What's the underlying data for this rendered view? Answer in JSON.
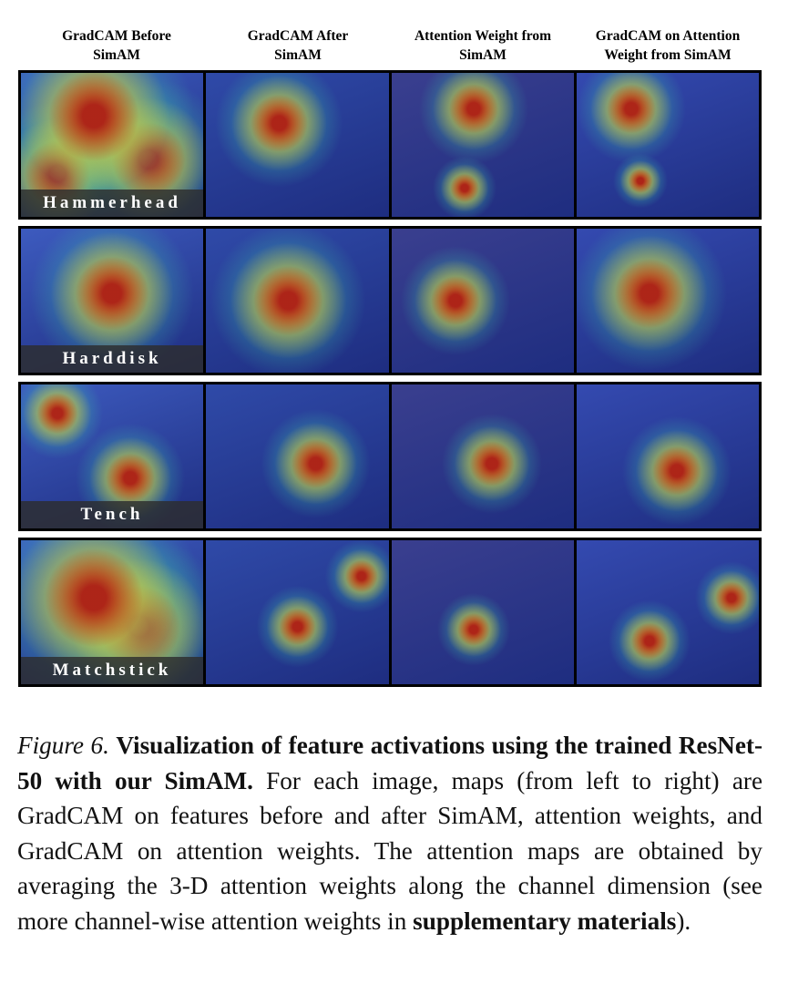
{
  "columns": [
    "GradCAM Before\nSimAM",
    "GradCAM After\nSimAM",
    "Attention Weight from\nSimAM",
    "GradCAM on Attention\nWeight from SimAM"
  ],
  "rows": [
    {
      "label": "Hammerhead"
    },
    {
      "label": "Harddisk"
    },
    {
      "label": "Tench"
    },
    {
      "label": "Matchstick"
    }
  ],
  "caption": {
    "label": "Figure 6.",
    "title": "Visualization of feature activations using the trained ResNet-50 with our SimAM.",
    "text": "For each image, maps (from left to right) are GradCAM on features before and after SimAM, attention weights, and GradCAM on attention weights. The attention maps are obtained by averaging the 3-D attention weights along the channel dimension (see more channel-wise attention weights in",
    "emphasis": "supplementary materials",
    "end": ")."
  }
}
